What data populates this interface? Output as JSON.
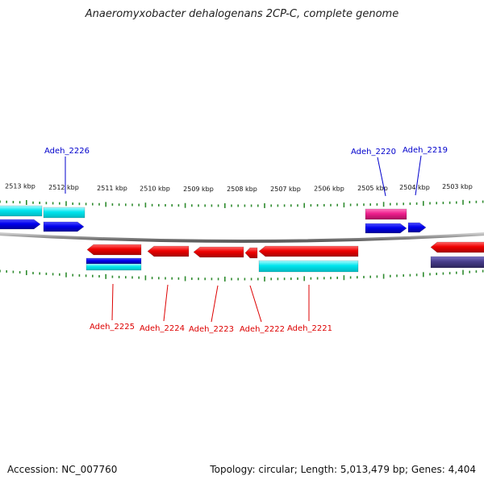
{
  "title": "Anaeromyxobacter dehalogenans 2CP-C, complete genome",
  "footer": {
    "accession": "Accession: NC_007760",
    "summary": "Topology: circular; Length: 5,013,479 bp; Genes: 4,404"
  },
  "colors": {
    "backbone": "#8a8a8a",
    "ticks": "#2e8b2e",
    "forward_label": "#0000cc",
    "reverse_label": "#dd0000",
    "gene_blue": "#0000ee",
    "cds_cyan": "#00e5ee",
    "gene_red": "#ee0000",
    "gene_magenta": "#ee1e8c",
    "gene_slate": "#483d8b"
  },
  "scale_labels": [
    "2513 kbp",
    "2512 kbp",
    "2511 kbp",
    "2510 kbp",
    "2509 kbp",
    "2508 kbp",
    "2507 kbp",
    "2506 kbp",
    "2505 kbp",
    "2504 kbp",
    "2503 kbp"
  ],
  "forward_gene_labels": [
    "Adeh_2226",
    "Adeh_2220",
    "Adeh_2219"
  ],
  "reverse_gene_labels": [
    "Adeh_2225",
    "Adeh_2224",
    "Adeh_2223",
    "Adeh_2222",
    "Adeh_2221"
  ]
}
